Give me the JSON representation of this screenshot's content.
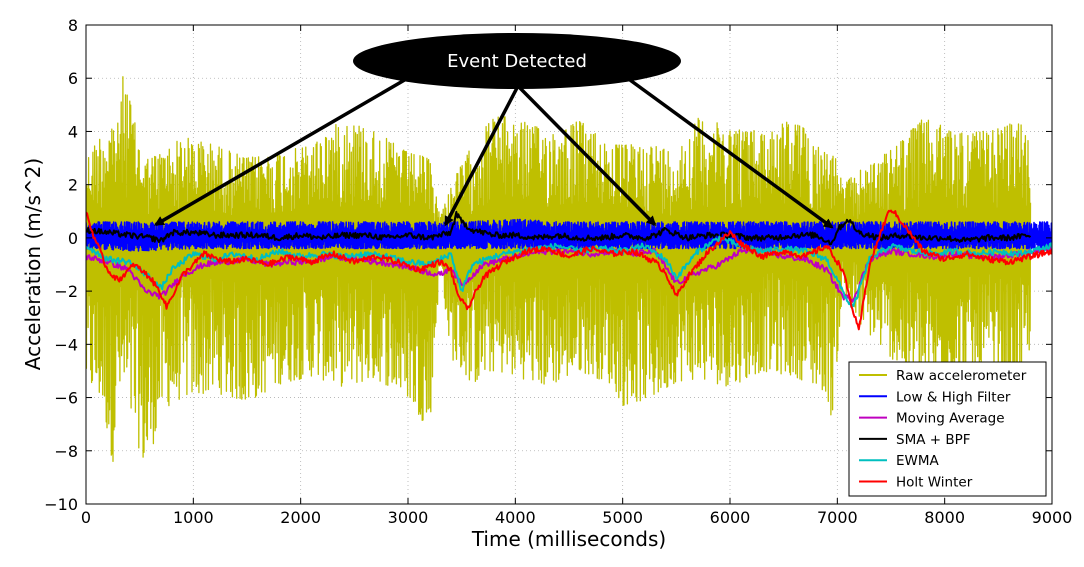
{
  "chart_data": {
    "type": "line",
    "title": "",
    "xlabel": "Time (milliseconds)",
    "ylabel": "Acceleration (m/s^2)",
    "xlim": [
      0,
      9000
    ],
    "ylim": [
      -10,
      8
    ],
    "x_ticks": [
      0,
      1000,
      2000,
      3000,
      4000,
      5000,
      6000,
      7000,
      8000,
      9000
    ],
    "y_ticks": [
      -10,
      -8,
      -6,
      -4,
      -2,
      0,
      2,
      4,
      6,
      8
    ],
    "x_tick_labels": [
      "0",
      "1000",
      "2000",
      "3000",
      "4000",
      "5000",
      "6000",
      "7000",
      "8000",
      "9000"
    ],
    "y_tick_labels": [
      "−10",
      "−8",
      "−6",
      "−4",
      "−2",
      "0",
      "2",
      "4",
      "6",
      "8"
    ],
    "grid": true,
    "legend_position": "bottom-right",
    "series": [
      {
        "name": "Raw accelerometer",
        "color": "#bfbf00",
        "style": "noise-band",
        "x": [
          0,
          150,
          250,
          300,
          350,
          500,
          560,
          700,
          900,
          1200,
          1500,
          1800,
          2100,
          2400,
          2700,
          3000,
          3200,
          3300,
          3400,
          3600,
          3800,
          4000,
          4300,
          4600,
          4900,
          5000,
          5300,
          5500,
          5700,
          6000,
          6300,
          6600,
          6900,
          6950,
          7050,
          7200,
          7500,
          7800,
          8100,
          8400,
          8700,
          8800
        ],
        "upper": [
          3.0,
          4.0,
          4.5,
          4.3,
          6.3,
          3.5,
          3.0,
          3.2,
          3.8,
          3.5,
          3.0,
          3.2,
          3.5,
          4.5,
          4.0,
          3.2,
          3.0,
          0.8,
          2.0,
          3.5,
          4.6,
          4.5,
          4.0,
          4.4,
          3.5,
          3.5,
          3.5,
          3.2,
          4.5,
          4.2,
          4.0,
          4.5,
          3.2,
          3.5,
          2.0,
          2.5,
          3.3,
          4.5,
          4.0,
          4.0,
          4.4,
          3.5
        ],
        "lower": [
          -5.5,
          -6.2,
          -8.5,
          -6.0,
          -6.0,
          -8.0,
          -8.9,
          -6.5,
          -6.0,
          -5.8,
          -6.2,
          -5.5,
          -5.2,
          -5.6,
          -5.3,
          -6.0,
          -7.3,
          -1.0,
          -4.5,
          -5.5,
          -5.0,
          -5.2,
          -5.6,
          -5.0,
          -5.5,
          -6.3,
          -6.0,
          -5.4,
          -5.3,
          -5.6,
          -5.0,
          -5.2,
          -5.8,
          -6.9,
          -2.0,
          -3.2,
          -4.5,
          -5.6,
          -5.8,
          -5.2,
          -6.0,
          -4.0
        ]
      },
      {
        "name": "Low & High Filter",
        "color": "#0000ff",
        "style": "noise-band",
        "x": [
          0,
          500,
          1000,
          1500,
          2000,
          2500,
          3000,
          3500,
          4000,
          4500,
          5000,
          5500,
          6000,
          6500,
          7000,
          7500,
          8000,
          8500,
          9000
        ],
        "upper": [
          0.6,
          0.6,
          0.6,
          0.6,
          0.6,
          0.6,
          0.6,
          0.6,
          0.7,
          0.6,
          0.6,
          0.6,
          0.6,
          0.6,
          0.6,
          0.6,
          0.6,
          0.6,
          0.6
        ],
        "lower": [
          -0.4,
          -0.5,
          -0.4,
          -0.4,
          -0.4,
          -0.4,
          -0.4,
          -0.4,
          -0.4,
          -0.4,
          -0.4,
          -0.4,
          -0.4,
          -0.4,
          -0.4,
          -0.4,
          -0.4,
          -0.4,
          -0.4
        ]
      },
      {
        "name": "Moving Average",
        "color": "#bf00bf",
        "style": "line",
        "x": [
          0,
          200,
          400,
          550,
          700,
          900,
          1100,
          1300,
          1500,
          1700,
          1900,
          2100,
          2300,
          2500,
          2700,
          2900,
          3100,
          3300,
          3400,
          3500,
          3700,
          3900,
          4100,
          4300,
          4500,
          4700,
          4900,
          5100,
          5300,
          5500,
          5700,
          5900,
          6100,
          6300,
          6500,
          6700,
          6900,
          7050,
          7150,
          7300,
          7500,
          7700,
          7900,
          8100,
          8300,
          8500,
          8700,
          9000
        ],
        "y": [
          -0.7,
          -0.9,
          -1.2,
          -2.0,
          -2.2,
          -1.4,
          -1.0,
          -0.9,
          -0.8,
          -1.0,
          -0.9,
          -0.9,
          -0.7,
          -0.8,
          -0.9,
          -1.0,
          -1.2,
          -1.4,
          -1.1,
          -1.8,
          -1.0,
          -0.8,
          -0.6,
          -0.5,
          -0.5,
          -0.6,
          -0.5,
          -0.6,
          -0.5,
          -1.7,
          -1.3,
          -1.0,
          -0.5,
          -0.5,
          -0.7,
          -0.8,
          -1.2,
          -2.2,
          -2.3,
          -0.8,
          -0.5,
          -0.6,
          -0.7,
          -0.6,
          -0.7,
          -0.7,
          -0.6,
          -0.4
        ]
      },
      {
        "name": "SMA + BPF",
        "color": "#000000",
        "style": "line",
        "x": [
          0,
          200,
          400,
          600,
          700,
          800,
          1000,
          1200,
          1400,
          1600,
          1800,
          2000,
          2200,
          2400,
          2600,
          2800,
          3000,
          3200,
          3400,
          3450,
          3500,
          3600,
          3800,
          4000,
          4200,
          4400,
          4600,
          4800,
          5000,
          5200,
          5300,
          5400,
          5600,
          5800,
          6000,
          6200,
          6400,
          6600,
          6800,
          6950,
          7000,
          7100,
          7200,
          7300,
          7400,
          7600,
          7800,
          8000,
          8200,
          8400,
          8600,
          8800
        ],
        "y": [
          0.3,
          0.2,
          0.1,
          0.0,
          -0.1,
          0.2,
          0.2,
          0.1,
          0.1,
          0.1,
          0.0,
          0.1,
          0.0,
          0.1,
          0.1,
          0.0,
          0.1,
          0.0,
          0.2,
          0.9,
          0.6,
          0.3,
          0.1,
          0.1,
          0.0,
          0.1,
          0.0,
          0.0,
          0.1,
          0.0,
          0.1,
          0.3,
          0.0,
          0.1,
          0.1,
          0.0,
          0.0,
          0.1,
          0.1,
          -0.2,
          0.3,
          0.7,
          0.2,
          0.1,
          0.0,
          0.1,
          0.0,
          0.0,
          -0.1,
          0.0,
          0.0,
          0.1
        ]
      },
      {
        "name": "EWMA",
        "color": "#00bfbf",
        "style": "line",
        "x": [
          0,
          200,
          400,
          600,
          700,
          800,
          1000,
          1200,
          1400,
          1600,
          1800,
          2000,
          2200,
          2400,
          2600,
          2800,
          3000,
          3200,
          3400,
          3500,
          3600,
          3800,
          4000,
          4200,
          4400,
          4600,
          4800,
          5000,
          5200,
          5400,
          5500,
          5700,
          5900,
          6100,
          6300,
          6500,
          6700,
          6900,
          7100,
          7150,
          7300,
          7500,
          7700,
          7900,
          8100,
          8300,
          8500,
          8700,
          9000
        ],
        "y": [
          -0.3,
          -0.8,
          -0.9,
          -1.5,
          -1.9,
          -1.2,
          -0.6,
          -0.8,
          -0.6,
          -0.8,
          -0.5,
          -0.7,
          -0.6,
          -0.7,
          -0.6,
          -0.7,
          -0.9,
          -1.0,
          -0.6,
          -2.0,
          -1.0,
          -0.7,
          -0.5,
          -0.4,
          -0.3,
          -0.5,
          -0.4,
          -0.5,
          -0.3,
          -0.8,
          -1.5,
          -0.5,
          0.0,
          -0.3,
          -0.5,
          -0.4,
          -0.5,
          -0.8,
          -2.4,
          -2.6,
          -0.8,
          -0.3,
          -0.5,
          -0.6,
          -0.5,
          -0.6,
          -0.5,
          -0.6,
          -0.3
        ]
      },
      {
        "name": "Holt Winter",
        "color": "#ff0000",
        "style": "line",
        "x": [
          0,
          50,
          200,
          300,
          450,
          600,
          700,
          750,
          900,
          1100,
          1300,
          1500,
          1700,
          1900,
          2100,
          2300,
          2500,
          2700,
          2900,
          3100,
          3300,
          3400,
          3450,
          3550,
          3700,
          3900,
          4100,
          4300,
          4500,
          4700,
          4900,
          5100,
          5300,
          5400,
          5500,
          5600,
          5800,
          6000,
          6100,
          6300,
          6500,
          6700,
          6900,
          7050,
          7150,
          7200,
          7300,
          7450,
          7500,
          7600,
          7800,
          8000,
          8200,
          8400,
          8600,
          8800,
          9000
        ],
        "y": [
          1.0,
          0.3,
          -1.2,
          -1.6,
          -1.0,
          -1.5,
          -2.1,
          -2.6,
          -1.4,
          -0.6,
          -0.9,
          -0.8,
          -1.0,
          -0.7,
          -0.9,
          -0.6,
          -0.9,
          -0.7,
          -0.9,
          -1.2,
          -0.9,
          -1.2,
          -2.0,
          -2.7,
          -1.5,
          -0.9,
          -0.5,
          -0.4,
          -0.7,
          -0.4,
          -0.6,
          -0.5,
          -0.9,
          -1.3,
          -2.2,
          -1.5,
          -0.5,
          0.2,
          -0.2,
          -0.7,
          -0.5,
          -0.7,
          -0.3,
          -1.2,
          -2.8,
          -3.5,
          -1.0,
          0.7,
          1.1,
          0.6,
          -0.5,
          -0.8,
          -0.6,
          -0.8,
          -0.9,
          -0.7,
          -0.5
        ]
      }
    ],
    "annotations": [
      {
        "text": "Event Detected",
        "arrow_targets": [
          [
            650,
            0.5
          ],
          [
            3350,
            0.5
          ],
          [
            5300,
            0.5
          ],
          [
            6950,
            0.4
          ]
        ]
      }
    ]
  }
}
